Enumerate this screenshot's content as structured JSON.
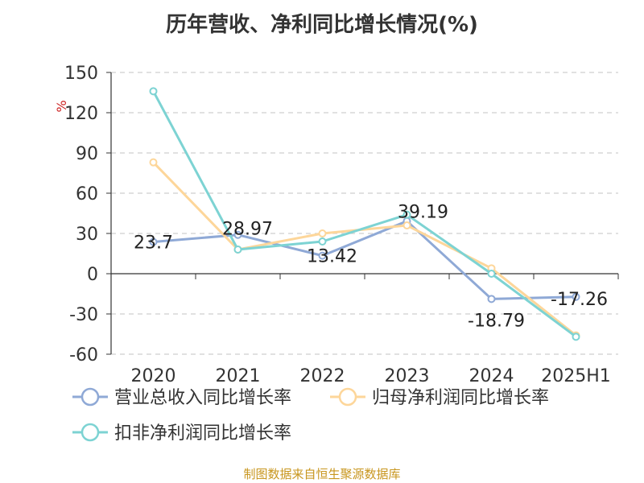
{
  "title": "历年营收、净利同比增长情况(%)",
  "source": "制图数据来自恒生聚源数据库",
  "chart_data": {
    "type": "line",
    "categories": [
      "2020",
      "2021",
      "2022",
      "2023",
      "2024",
      "2025H1"
    ],
    "ylabel": "%",
    "ylim": [
      -60,
      150
    ],
    "yticks": [
      150,
      120,
      90,
      60,
      30,
      0,
      -30,
      -60
    ],
    "grid": "dashed-horizontal",
    "legend_position": "bottom",
    "series": [
      {
        "name": "营业总收入同比增长率",
        "color": "#8fa9d6",
        "values": [
          23.7,
          28.97,
          13.42,
          39.19,
          -18.79,
          -17.26
        ],
        "labels": [
          "23.7",
          "28.97",
          "13.42",
          "39.19",
          "-18.79",
          "-17.26"
        ]
      },
      {
        "name": "归母净利润同比增长率",
        "color": "#fdd69a",
        "values": [
          83,
          18,
          30,
          36,
          4,
          -46
        ]
      },
      {
        "name": "扣非净利润同比增长率",
        "color": "#7dd3d3",
        "values": [
          136,
          18,
          24,
          44,
          0,
          -47
        ]
      }
    ]
  }
}
